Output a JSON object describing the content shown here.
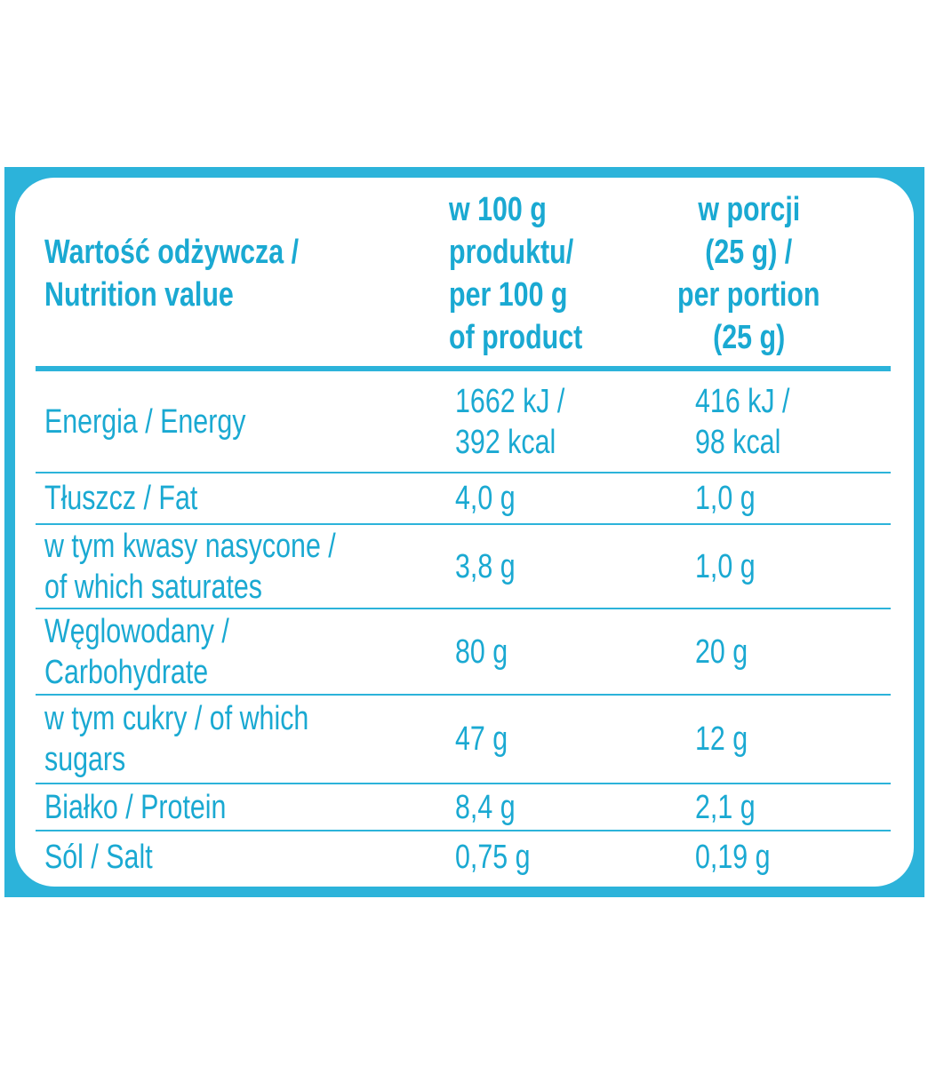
{
  "table": {
    "header": [
      [
        "Wartość odżywcza /",
        "Nutrition value"
      ],
      [
        "w 100 g",
        "produktu/",
        "per 100 g",
        "of product"
      ],
      [
        "w porcji",
        "(25 g) /",
        "per portion",
        "(25 g)"
      ]
    ],
    "rows": [
      [
        [
          "Energia / Energy"
        ],
        [
          "1662 kJ /",
          "392 kcal"
        ],
        [
          "416 kJ /",
          "98 kcal"
        ]
      ],
      [
        [
          "Tłuszcz / Fat"
        ],
        [
          "4,0 g"
        ],
        [
          "1,0 g"
        ]
      ],
      [
        [
          "w tym kwasy nasycone /",
          "of which saturates"
        ],
        [
          "3,8 g"
        ],
        [
          "1,0 g"
        ]
      ],
      [
        [
          "Węglowodany /",
          "Carbohydrate"
        ],
        [
          "80 g"
        ],
        [
          "20 g"
        ]
      ],
      [
        [
          "w tym cukry / of which",
          "sugars"
        ],
        [
          "47 g"
        ],
        [
          "12 g"
        ]
      ],
      [
        [
          "Białko / Protein"
        ],
        [
          "8,4 g"
        ],
        [
          "2,1 g"
        ]
      ],
      [
        [
          "Sól / Salt"
        ],
        [
          "0,75 g"
        ],
        [
          "0,19 g"
        ]
      ]
    ]
  }
}
